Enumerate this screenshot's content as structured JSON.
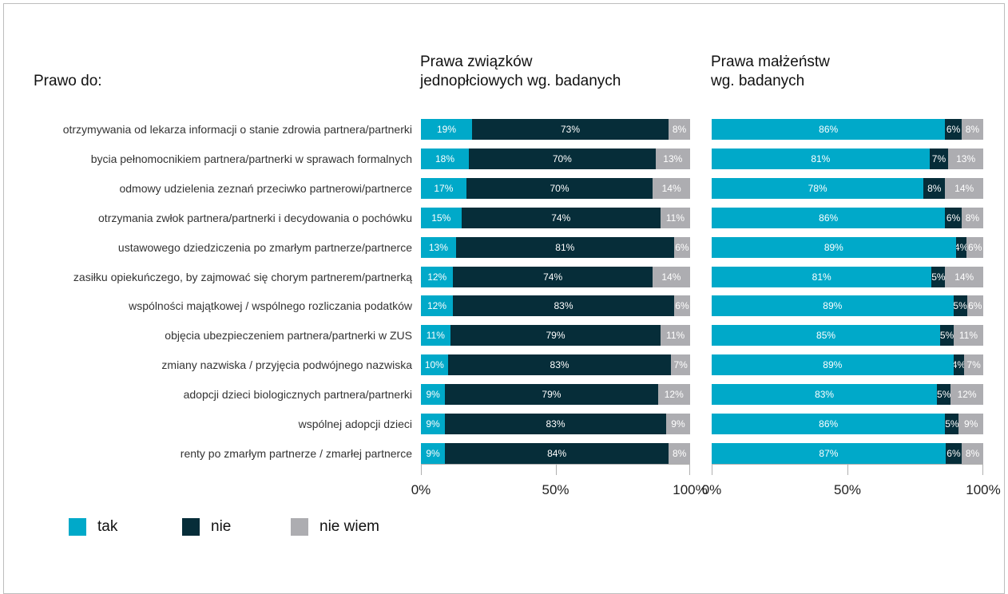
{
  "headings": {
    "rows_title": "Prawo do:",
    "left_title": [
      "Prawa związków",
      "jednopłciowych wg. badanych"
    ],
    "right_title": [
      "Prawa małżeństw",
      "wg. badanych"
    ]
  },
  "legend": [
    {
      "name": "tak",
      "color": "#00a9c9"
    },
    {
      "name": "nie",
      "color": "#062d39"
    },
    {
      "name": "nie wiem",
      "color": "#adadb1"
    }
  ],
  "axis_ticks": [
    "0%",
    "50%",
    "100%"
  ],
  "chart_data": [
    {
      "type": "bar",
      "orientation": "horizontal",
      "stacked": "percent",
      "title": "Prawa związków jednopłciowych wg. badanych",
      "ylabel": "Prawo do:",
      "xlim": [
        0,
        100
      ],
      "x_ticks": [
        "0%",
        "50%",
        "100%"
      ],
      "legend_placement": "bottom-left",
      "categories": [
        "otrzymywania od lekarza informacji o stanie zdrowia partnera/partnerki",
        "bycia pełnomocnikiem partnera/partnerki w sprawach  formalnych",
        "odmowy udzielenia zeznań przeciwko partnerowi/partnerce",
        "otrzymania zwłok partnera/partnerki i decydowania o pochówku",
        "ustawowego dziedziczenia po zmarłym partnerze/partnerce",
        "zasiłku opiekuńczego, by zajmować się chorym partnerem/partnerką",
        "wspólności majątkowej / wspólnego rozliczania podatków",
        "objęcia ubezpieczeniem partnera/partnerki w ZUS",
        "zmiany nazwiska / przyjęcia podwójnego nazwiska",
        "adopcji dzieci biologicznych partnera/partnerki",
        "wspólnej adopcji dzieci",
        "renty po zmarłym partnerze  / zmarłej partnerce"
      ],
      "series": [
        {
          "name": "tak",
          "values": [
            19,
            18,
            17,
            15,
            13,
            12,
            12,
            11,
            10,
            9,
            9,
            9
          ]
        },
        {
          "name": "nie",
          "values": [
            73,
            70,
            70,
            74,
            81,
            74,
            83,
            79,
            83,
            79,
            83,
            84
          ]
        },
        {
          "name": "nie wiem",
          "values": [
            8,
            13,
            14,
            11,
            6,
            14,
            6,
            11,
            7,
            12,
            9,
            8
          ]
        }
      ]
    },
    {
      "type": "bar",
      "orientation": "horizontal",
      "stacked": "percent",
      "title": "Prawa małżeństw wg. badanych",
      "xlim": [
        0,
        100
      ],
      "x_ticks": [
        "0%",
        "50%",
        "100%"
      ],
      "categories": [
        "otrzymywania od lekarza informacji o stanie zdrowia partnera/partnerki",
        "bycia pełnomocnikiem partnera/partnerki w sprawach  formalnych",
        "odmowy udzielenia zeznań przeciwko partnerowi/partnerce",
        "otrzymania zwłok partnera/partnerki i decydowania o pochówku",
        "ustawowego dziedziczenia po zmarłym partnerze/partnerce",
        "zasiłku opiekuńczego, by zajmować się chorym partnerem/partnerką",
        "wspólności majątkowej / wspólnego rozliczania podatków",
        "objęcia ubezpieczeniem partnera/partnerki w ZUS",
        "zmiany nazwiska / przyjęcia podwójnego nazwiska",
        "adopcji dzieci biologicznych partnera/partnerki",
        "wspólnej adopcji dzieci",
        "renty po zmarłym partnerze  / zmarłej partnerce"
      ],
      "series": [
        {
          "name": "tak",
          "values": [
            86,
            81,
            78,
            86,
            89,
            81,
            89,
            85,
            89,
            83,
            86,
            87
          ]
        },
        {
          "name": "nie",
          "values": [
            6,
            7,
            8,
            6,
            4,
            5,
            5,
            5,
            4,
            5,
            5,
            6
          ]
        },
        {
          "name": "nie wiem",
          "values": [
            8,
            13,
            14,
            8,
            6,
            14,
            6,
            11,
            7,
            12,
            9,
            8
          ]
        }
      ]
    }
  ]
}
